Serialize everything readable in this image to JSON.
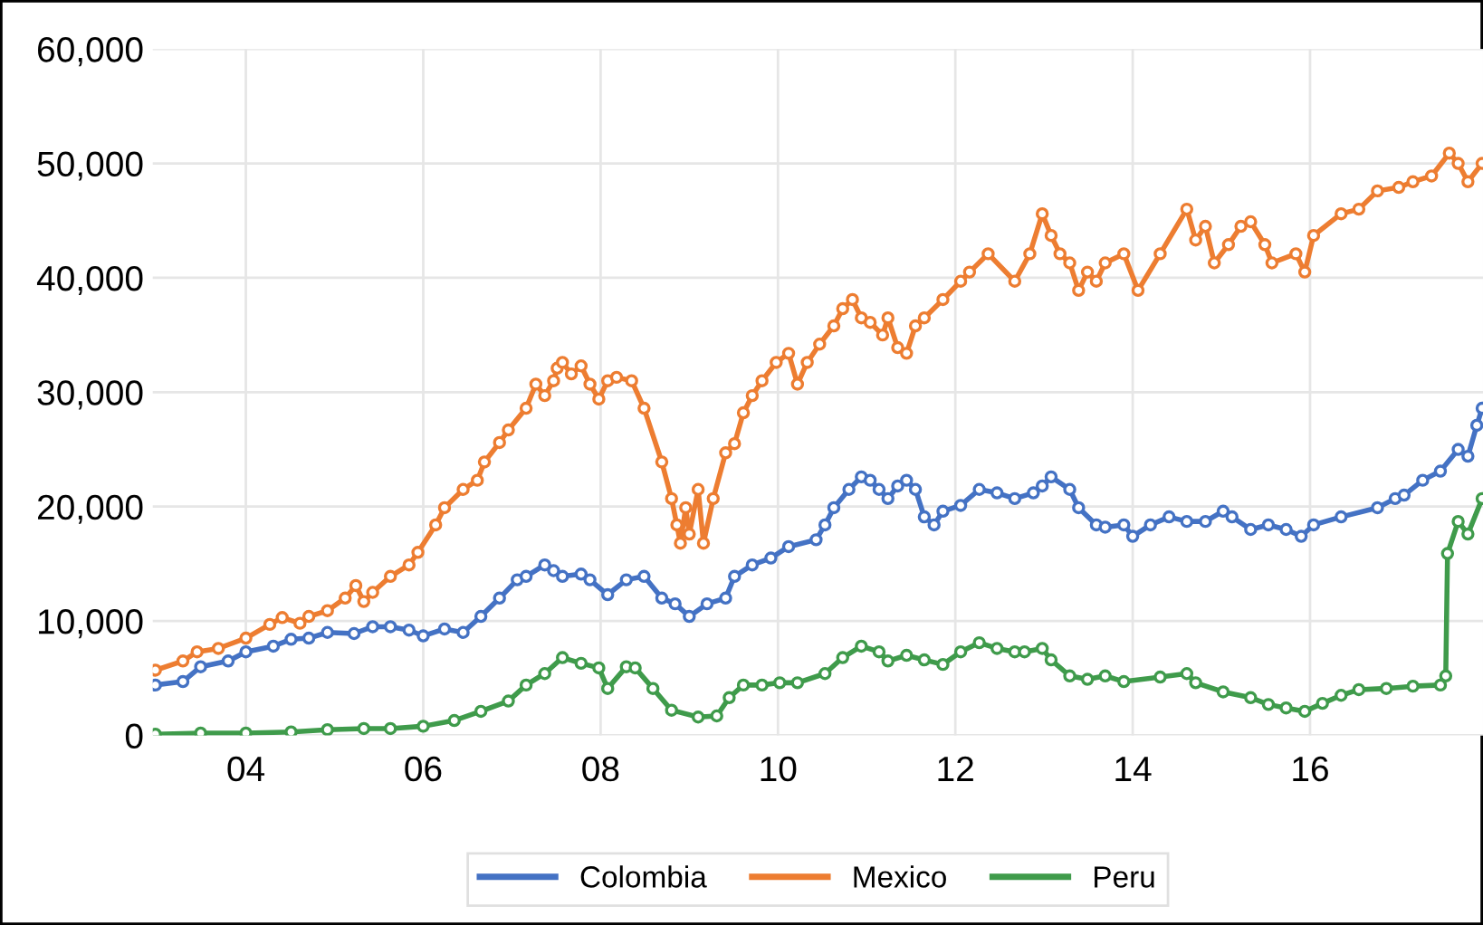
{
  "chart_data": {
    "type": "line",
    "legend": "bottom",
    "grid": true,
    "marker": "circle",
    "line_style": "solid",
    "xlim": [
      2002.95,
      2017.95
    ],
    "ylim": [
      0,
      60000
    ],
    "xticks": [
      {
        "value": 2004,
        "label": "04"
      },
      {
        "value": 2006,
        "label": "06"
      },
      {
        "value": 2008,
        "label": "08"
      },
      {
        "value": 2010,
        "label": "10"
      },
      {
        "value": 2012,
        "label": "12"
      },
      {
        "value": 2014,
        "label": "14"
      },
      {
        "value": 2016,
        "label": "16"
      }
    ],
    "yticks": [
      {
        "value": 0,
        "label": "0"
      },
      {
        "value": 10000,
        "label": "10,000"
      },
      {
        "value": 20000,
        "label": "20,000"
      },
      {
        "value": 30000,
        "label": "30,000"
      },
      {
        "value": 40000,
        "label": "40,000"
      },
      {
        "value": 50000,
        "label": "50,000"
      },
      {
        "value": 60000,
        "label": "60,000"
      }
    ],
    "series": [
      {
        "name": "Colombia",
        "color": "#4472c4",
        "x": [
          2002.98,
          2003.29,
          2003.49,
          2003.8,
          2004.0,
          2004.31,
          2004.51,
          2004.71,
          2004.92,
          2005.22,
          2005.43,
          2005.63,
          2005.84,
          2006.0,
          2006.24,
          2006.45,
          2006.65,
          2006.86,
          2007.06,
          2007.16,
          2007.37,
          2007.47,
          2007.57,
          2007.78,
          2007.88,
          2008.08,
          2008.29,
          2008.49,
          2008.69,
          2008.84,
          2009.0,
          2009.2,
          2009.41,
          2009.51,
          2009.71,
          2009.92,
          2010.12,
          2010.43,
          2010.53,
          2010.63,
          2010.8,
          2010.94,
          2011.04,
          2011.14,
          2011.24,
          2011.35,
          2011.45,
          2011.55,
          2011.65,
          2011.76,
          2011.86,
          2012.06,
          2012.27,
          2012.47,
          2012.67,
          2012.88,
          2012.98,
          2013.08,
          2013.29,
          2013.39,
          2013.59,
          2013.69,
          2013.9,
          2014.0,
          2014.2,
          2014.41,
          2014.61,
          2014.82,
          2015.02,
          2015.12,
          2015.33,
          2015.53,
          2015.73,
          2015.9,
          2016.04,
          2016.35,
          2016.76,
          2016.96,
          2017.06,
          2017.27,
          2017.47,
          2017.67,
          2017.78,
          2017.88,
          2017.94
        ],
        "values": [
          4400,
          4700,
          6000,
          6500,
          7300,
          7800,
          8400,
          8500,
          9000,
          8900,
          9500,
          9500,
          9200,
          8700,
          9300,
          9000,
          10400,
          12000,
          13600,
          13900,
          14900,
          14400,
          13900,
          14100,
          13600,
          12300,
          13600,
          13900,
          12000,
          11500,
          10400,
          11500,
          12000,
          13900,
          14900,
          15500,
          16500,
          17100,
          18400,
          19900,
          21500,
          22600,
          22300,
          21500,
          20700,
          21800,
          22300,
          21500,
          19100,
          18400,
          19600,
          20100,
          21500,
          21200,
          20700,
          21200,
          21800,
          22600,
          21500,
          19900,
          18400,
          18200,
          18400,
          17400,
          18400,
          19100,
          18700,
          18700,
          19600,
          19100,
          18000,
          18400,
          18000,
          17400,
          18400,
          19100,
          19900,
          20700,
          21000,
          22300,
          23100,
          25000,
          24400,
          27100,
          28600
        ]
      },
      {
        "name": "Mexico",
        "color": "#ed7d31",
        "x": [
          2002.98,
          2003.29,
          2003.45,
          2003.69,
          2004.0,
          2004.27,
          2004.41,
          2004.61,
          2004.71,
          2004.92,
          2005.12,
          2005.24,
          2005.33,
          2005.43,
          2005.63,
          2005.84,
          2005.94,
          2006.14,
          2006.24,
          2006.45,
          2006.61,
          2006.69,
          2006.86,
          2006.96,
          2007.16,
          2007.27,
          2007.37,
          2007.47,
          2007.51,
          2007.57,
          2007.67,
          2007.78,
          2007.88,
          2007.98,
          2008.08,
          2008.18,
          2008.35,
          2008.49,
          2008.69,
          2008.8,
          2008.86,
          2008.9,
          2008.96,
          2009.0,
          2009.1,
          2009.16,
          2009.27,
          2009.41,
          2009.51,
          2009.61,
          2009.71,
          2009.82,
          2009.98,
          2010.12,
          2010.22,
          2010.33,
          2010.47,
          2010.63,
          2010.73,
          2010.84,
          2010.94,
          2011.04,
          2011.18,
          2011.24,
          2011.35,
          2011.45,
          2011.55,
          2011.65,
          2011.86,
          2012.06,
          2012.16,
          2012.37,
          2012.67,
          2012.84,
          2012.98,
          2013.08,
          2013.18,
          2013.29,
          2013.39,
          2013.49,
          2013.59,
          2013.69,
          2013.9,
          2014.06,
          2014.31,
          2014.61,
          2014.71,
          2014.82,
          2014.92,
          2015.08,
          2015.22,
          2015.33,
          2015.49,
          2015.57,
          2015.84,
          2015.94,
          2016.04,
          2016.35,
          2016.55,
          2016.76,
          2017.0,
          2017.16,
          2017.37,
          2017.57,
          2017.67,
          2017.78,
          2017.94
        ],
        "values": [
          5700,
          6500,
          7300,
          7600,
          8500,
          9700,
          10300,
          9800,
          10400,
          10900,
          12000,
          13100,
          11700,
          12500,
          13900,
          14900,
          16000,
          18400,
          19900,
          21500,
          22300,
          23900,
          25600,
          26700,
          28600,
          30700,
          29700,
          31000,
          32100,
          32600,
          31600,
          32300,
          30700,
          29400,
          31000,
          31300,
          31000,
          28600,
          23900,
          20700,
          18400,
          16800,
          19900,
          17600,
          21500,
          16800,
          20700,
          24700,
          25500,
          28200,
          29700,
          31000,
          32600,
          33400,
          30700,
          32600,
          34200,
          35800,
          37300,
          38100,
          36500,
          36100,
          35000,
          36500,
          33900,
          33400,
          35800,
          36500,
          38100,
          39700,
          40500,
          42100,
          39700,
          42100,
          45600,
          43700,
          42100,
          41300,
          38900,
          40500,
          39700,
          41300,
          42100,
          38900,
          42100,
          46000,
          43300,
          44500,
          41300,
          42900,
          44500,
          44900,
          42900,
          41300,
          42100,
          40500,
          43700,
          45600,
          46000,
          47600,
          47900,
          48400,
          48900,
          50900,
          50000,
          48400,
          50000
        ]
      },
      {
        "name": "Peru",
        "color": "#3f9b4b",
        "x": [
          2002.98,
          2003.49,
          2004.0,
          2004.51,
          2004.92,
          2005.33,
          2005.63,
          2006.0,
          2006.35,
          2006.65,
          2006.96,
          2007.16,
          2007.37,
          2007.57,
          2007.78,
          2007.98,
          2008.08,
          2008.29,
          2008.39,
          2008.59,
          2008.8,
          2009.1,
          2009.31,
          2009.45,
          2009.61,
          2009.82,
          2010.02,
          2010.22,
          2010.53,
          2010.73,
          2010.94,
          2011.14,
          2011.24,
          2011.45,
          2011.65,
          2011.86,
          2012.06,
          2012.27,
          2012.47,
          2012.67,
          2012.78,
          2012.98,
          2013.08,
          2013.29,
          2013.49,
          2013.69,
          2013.9,
          2014.31,
          2014.61,
          2014.71,
          2015.02,
          2015.33,
          2015.53,
          2015.73,
          2015.94,
          2016.14,
          2016.35,
          2016.55,
          2016.86,
          2017.16,
          2017.47,
          2017.53,
          2017.55,
          2017.67,
          2017.78,
          2017.94
        ],
        "values": [
          100,
          200,
          200,
          300,
          500,
          600,
          600,
          800,
          1300,
          2100,
          3000,
          4400,
          5400,
          6800,
          6300,
          5900,
          4100,
          6000,
          5900,
          4100,
          2200,
          1600,
          1700,
          3300,
          4400,
          4400,
          4600,
          4600,
          5400,
          6800,
          7800,
          7300,
          6500,
          7000,
          6600,
          6200,
          7300,
          8100,
          7600,
          7300,
          7300,
          7600,
          6600,
          5200,
          4900,
          5200,
          4700,
          5100,
          5400,
          4600,
          3800,
          3300,
          2700,
          2400,
          2100,
          2800,
          3500,
          4000,
          4100,
          4300,
          4400,
          5200,
          15900,
          18700,
          17600,
          20700
        ]
      }
    ]
  }
}
